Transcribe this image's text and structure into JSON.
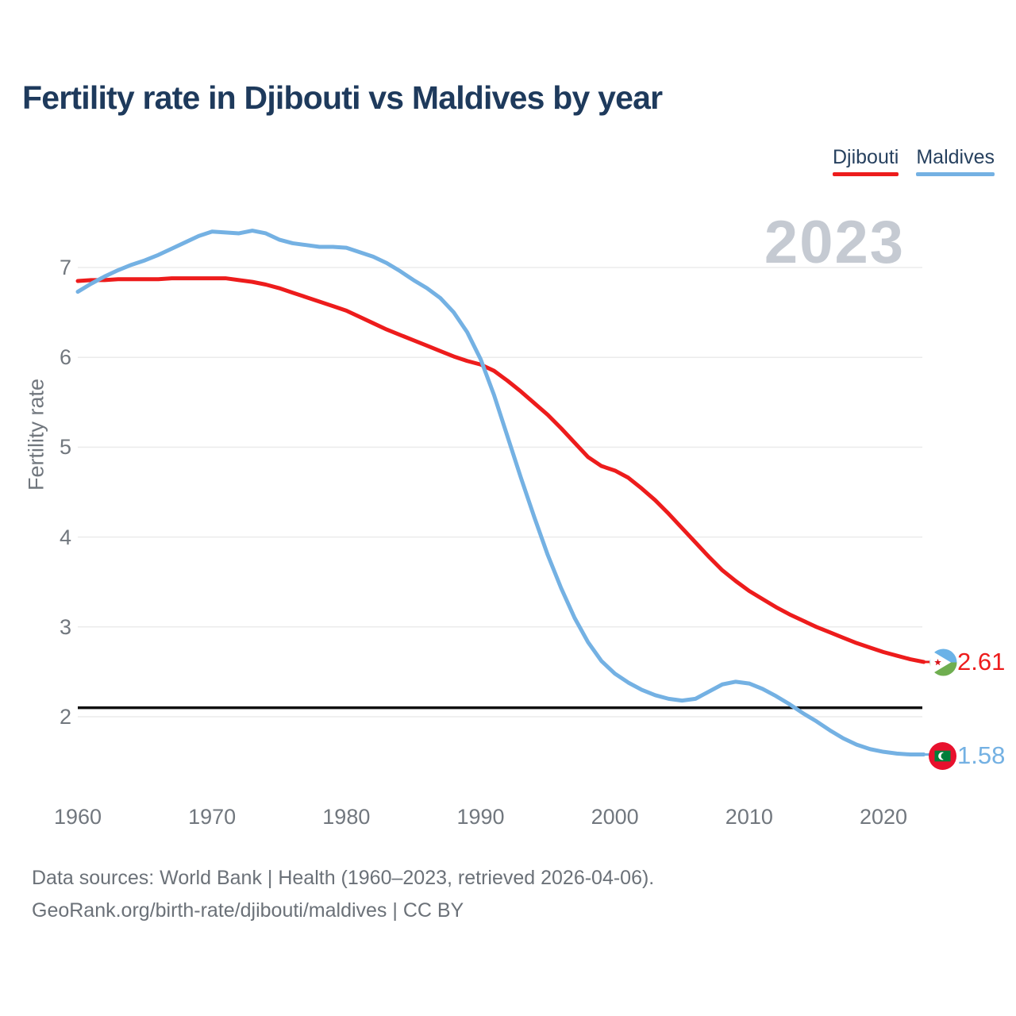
{
  "title": "Fertility rate in Djibouti vs Maldives by year",
  "watermark": "2023",
  "legend": {
    "items": [
      {
        "label": "Djibouti",
        "color": "#ed1c1c"
      },
      {
        "label": "Maldives",
        "color": "#74b1e3"
      }
    ]
  },
  "axes": {
    "y_label": "Fertility rate",
    "y_ticks": [
      7,
      6,
      5,
      4,
      3,
      2
    ],
    "x_ticks": [
      1960,
      1970,
      1980,
      1990,
      2000,
      2010,
      2020
    ],
    "reference_line_value": 2.1
  },
  "end_labels": {
    "djibouti": "2.61",
    "maldives": "1.58"
  },
  "footer": {
    "line1": "Data sources: World Bank | Health (1960–2023, retrieved 2026-04-06).",
    "line2": "GeoRank.org/birth-rate/djibouti/maldives | CC BY"
  },
  "colors": {
    "title_text": "#1e3a5c",
    "axis_text": "#71777e",
    "grid": "#ebebeb",
    "watermark": "#c5cad2",
    "reference_line": "#111111",
    "djibouti_red": "#ed1c1c",
    "maldives_blue": "#74b1e3",
    "footer_text": "#6b7178"
  },
  "chart_data": {
    "type": "line",
    "title": "Fertility rate in Djibouti vs Maldives by year",
    "xlabel": "",
    "ylabel": "Fertility rate",
    "ylim": [
      1.4,
      7.6
    ],
    "xlim": [
      1960,
      2023
    ],
    "grid": "horizontal",
    "legend_position": "top-right",
    "annotations": {
      "replacement_level_line": 2.1,
      "year_watermark": "2023"
    },
    "x": [
      1960,
      1961,
      1962,
      1963,
      1964,
      1965,
      1966,
      1967,
      1968,
      1969,
      1970,
      1971,
      1972,
      1973,
      1974,
      1975,
      1976,
      1977,
      1978,
      1979,
      1980,
      1981,
      1982,
      1983,
      1984,
      1985,
      1986,
      1987,
      1988,
      1989,
      1990,
      1991,
      1992,
      1993,
      1994,
      1995,
      1996,
      1997,
      1998,
      1999,
      2000,
      2001,
      2002,
      2003,
      2004,
      2005,
      2006,
      2007,
      2008,
      2009,
      2010,
      2011,
      2012,
      2013,
      2014,
      2015,
      2016,
      2017,
      2018,
      2019,
      2020,
      2021,
      2022,
      2023
    ],
    "series": [
      {
        "name": "Djibouti",
        "color": "#ed1c1c",
        "final_value": 2.61,
        "values": [
          6.85,
          6.86,
          6.86,
          6.87,
          6.87,
          6.87,
          6.87,
          6.88,
          6.88,
          6.88,
          6.88,
          6.88,
          6.86,
          6.84,
          6.81,
          6.77,
          6.72,
          6.67,
          6.62,
          6.57,
          6.52,
          6.45,
          6.38,
          6.31,
          6.25,
          6.19,
          6.13,
          6.07,
          6.01,
          5.96,
          5.92,
          5.85,
          5.74,
          5.62,
          5.49,
          5.36,
          5.21,
          5.05,
          4.89,
          4.79,
          4.74,
          4.66,
          4.54,
          4.41,
          4.26,
          4.1,
          3.94,
          3.78,
          3.63,
          3.51,
          3.4,
          3.31,
          3.22,
          3.14,
          3.07,
          3.0,
          2.94,
          2.88,
          2.82,
          2.77,
          2.72,
          2.68,
          2.64,
          2.61
        ]
      },
      {
        "name": "Maldives",
        "color": "#74b1e3",
        "final_value": 1.58,
        "values": [
          6.73,
          6.82,
          6.9,
          6.97,
          7.03,
          7.08,
          7.14,
          7.21,
          7.28,
          7.35,
          7.4,
          7.39,
          7.38,
          7.41,
          7.38,
          7.31,
          7.27,
          7.25,
          7.23,
          7.23,
          7.22,
          7.17,
          7.12,
          7.05,
          6.96,
          6.86,
          6.77,
          6.66,
          6.5,
          6.28,
          5.98,
          5.58,
          5.12,
          4.66,
          4.22,
          3.8,
          3.43,
          3.1,
          2.83,
          2.62,
          2.48,
          2.38,
          2.3,
          2.24,
          2.2,
          2.18,
          2.2,
          2.28,
          2.36,
          2.39,
          2.37,
          2.31,
          2.23,
          2.14,
          2.04,
          1.95,
          1.85,
          1.76,
          1.69,
          1.64,
          1.61,
          1.59,
          1.58,
          1.58
        ]
      }
    ]
  }
}
